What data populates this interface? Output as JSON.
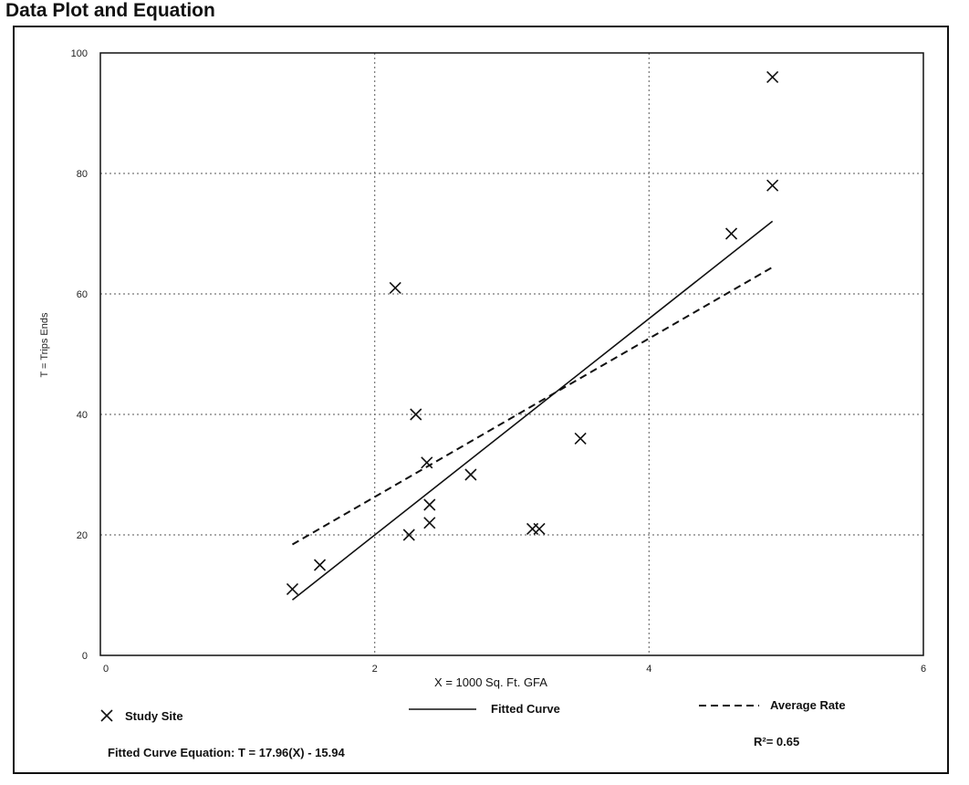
{
  "title": "Data Plot and Equation",
  "chart_data": {
    "type": "scatter",
    "xlabel": "X = 1000 Sq. Ft. GFA",
    "ylabel": "T = Trips Ends",
    "xlim": [
      0,
      6
    ],
    "ylim": [
      0,
      100
    ],
    "xticks": [
      "0",
      "2",
      "4",
      "6"
    ],
    "yticks": [
      "0",
      "20",
      "40",
      "60",
      "80",
      "100"
    ],
    "grid": true,
    "series": [
      {
        "name": "Study Site",
        "marker": "x",
        "points": [
          [
            1.4,
            11
          ],
          [
            1.6,
            15
          ],
          [
            2.15,
            61
          ],
          [
            2.25,
            20
          ],
          [
            2.3,
            40
          ],
          [
            2.38,
            32
          ],
          [
            2.4,
            25
          ],
          [
            2.4,
            22
          ],
          [
            2.7,
            30
          ],
          [
            3.15,
            21
          ],
          [
            3.2,
            21
          ],
          [
            3.5,
            36
          ],
          [
            4.6,
            70
          ],
          [
            4.9,
            96
          ],
          [
            4.9,
            78
          ]
        ]
      },
      {
        "name": "Fitted Curve",
        "style": "solid",
        "equation": "T = 17.96(X) - 15.94",
        "x_range": [
          1.4,
          4.9
        ]
      },
      {
        "name": "Average Rate",
        "style": "dashed",
        "rate": 13.15,
        "x_range": [
          1.4,
          4.9
        ]
      }
    ],
    "equation_label": "Fitted Curve Equation: T = 17.96(X) - 15.94",
    "r_squared_label": "R²= 0.65"
  }
}
